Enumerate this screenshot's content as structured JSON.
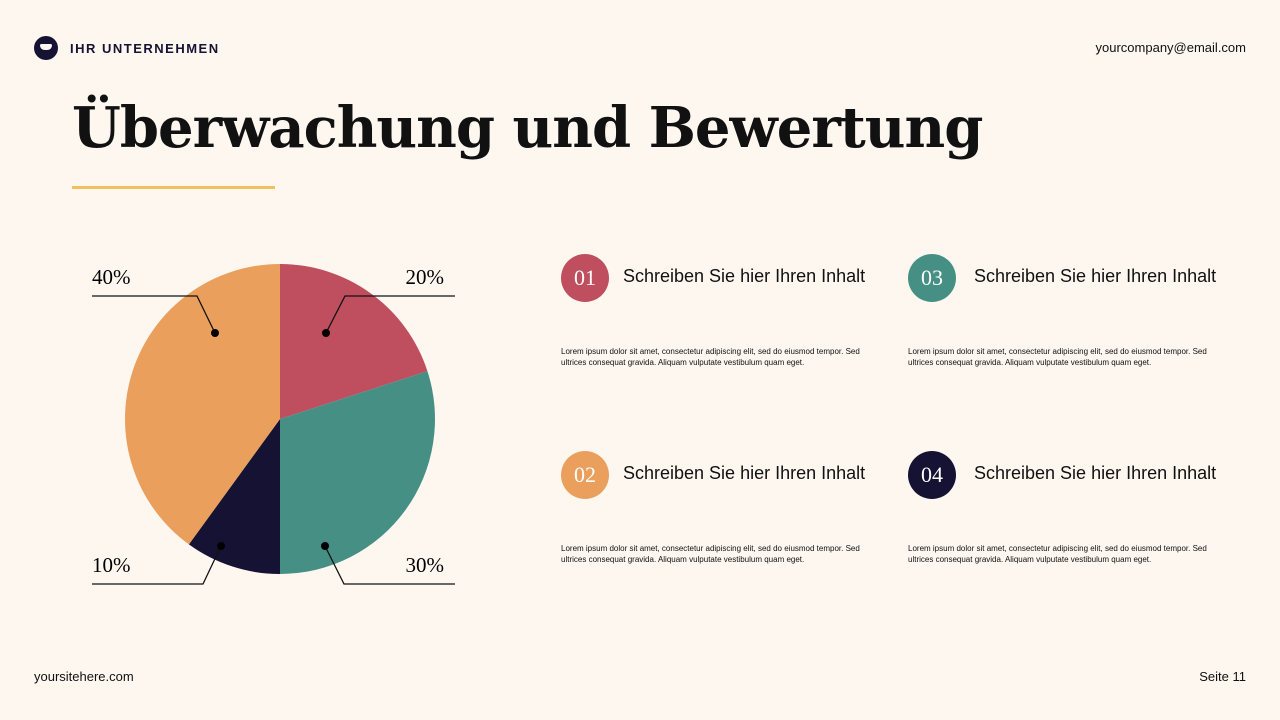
{
  "header": {
    "company": "IHR UNTERNEHMEN",
    "email": "yourcompany@email.com",
    "logo_icon": "graduation-cap-icon"
  },
  "title": "Überwachung und Bewertung",
  "colors": {
    "background": "#fdf7f0",
    "accent_rule": "#f2c15e",
    "red": "#bf4e5e",
    "teal": "#468f84",
    "navy": "#161233",
    "orange": "#eb9f5c"
  },
  "chart_data": {
    "type": "pie",
    "start": "top, clockwise",
    "slices": [
      {
        "label": "20%",
        "value": 20,
        "color": "#bf4e5e"
      },
      {
        "label": "30%",
        "value": 30,
        "color": "#468f84"
      },
      {
        "label": "10%",
        "value": 10,
        "color": "#161233"
      },
      {
        "label": "40%",
        "value": 40,
        "color": "#eb9f5c"
      }
    ]
  },
  "items": [
    {
      "num": "01",
      "title": "Schreiben Sie hier Ihren Inhalt",
      "desc": "Lorem ipsum dolor sit amet, consectetur adipiscing elit, sed do eiusmod tempor. Sed ultrices consequat gravida. Aliquam vulputate vestibulum quam eget.",
      "color": "#bf4e5e"
    },
    {
      "num": "02",
      "title": "Schreiben Sie hier Ihren Inhalt",
      "desc": "Lorem ipsum dolor sit amet, consectetur adipiscing elit, sed do eiusmod tempor. Sed ultrices consequat gravida. Aliquam vulputate vestibulum quam eget.",
      "color": "#eb9f5c"
    },
    {
      "num": "03",
      "title": "Schreiben Sie hier Ihren Inhalt",
      "desc": "Lorem ipsum dolor sit amet, consectetur adipiscing elit, sed do eiusmod tempor. Sed ultrices consequat gravida. Aliquam vulputate vestibulum quam eget.",
      "color": "#468f84"
    },
    {
      "num": "04",
      "title": "Schreiben Sie hier Ihren Inhalt",
      "desc": "Lorem ipsum dolor sit amet, consectetur adipiscing elit, sed do eiusmod tempor. Sed ultrices consequat gravida. Aliquam vulputate vestibulum quam eget.",
      "color": "#161233"
    }
  ],
  "footer": {
    "site": "yoursitehere.com",
    "page": "Seite 11"
  }
}
